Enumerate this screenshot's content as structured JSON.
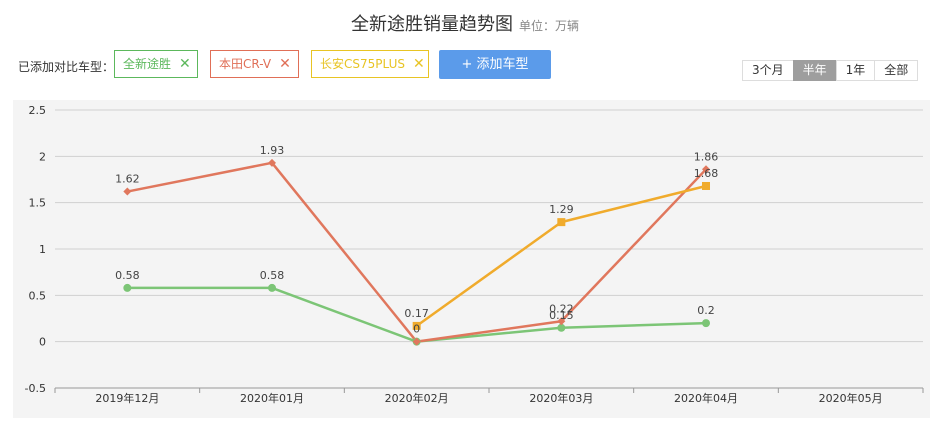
{
  "header": {
    "title": "全新途胜销量趋势图",
    "unit": "单位：万辆"
  },
  "compare": {
    "label": "已添加对比车型：",
    "tags": [
      {
        "name": "全新途胜",
        "close": "✕",
        "color": "#5cb85c"
      },
      {
        "name": "本田CR-V",
        "close": "✕",
        "color": "#e06f57"
      },
      {
        "name": "长安CS75PLUS",
        "close": "✕",
        "color": "#e8c424"
      }
    ],
    "add_button": "+ 添加车型"
  },
  "range_buttons": [
    {
      "label": "3个月",
      "active": false
    },
    {
      "label": "半年",
      "active": true
    },
    {
      "label": "1年",
      "active": false
    },
    {
      "label": "全部",
      "active": false
    }
  ],
  "chart_data": {
    "type": "line",
    "title": "全新途胜销量趋势图",
    "ylabel": "万辆",
    "categories": [
      "2019年12月",
      "2020年01月",
      "2020年02月",
      "2020年03月",
      "2020年04月",
      "2020年05月"
    ],
    "ylim": [
      -0.5,
      2.5
    ],
    "yticks": [
      -0.5,
      0,
      0.5,
      1,
      1.5,
      2,
      2.5
    ],
    "ytick_labels": [
      "-0.5",
      "0",
      "0.5",
      "1",
      "1.5",
      "2",
      "2.5"
    ],
    "grid": true,
    "series": [
      {
        "name": "全新途胜",
        "color": "#7cc576",
        "marker": "circle",
        "values": [
          0.58,
          0.58,
          0,
          0.15,
          0.2,
          null
        ],
        "labels": [
          "0.58",
          "0.58",
          "0",
          "0.15",
          "0.2",
          null
        ]
      },
      {
        "name": "本田CR-V",
        "color": "#e0775d",
        "marker": "diamond",
        "values": [
          1.62,
          1.93,
          0,
          0.22,
          1.86,
          null
        ],
        "labels": [
          "1.62",
          "1.93",
          "",
          "0.22",
          "1.86",
          null
        ]
      },
      {
        "name": "长安CS75PLUS",
        "color": "#f0ab2c",
        "marker": "square",
        "values": [
          null,
          null,
          0.17,
          1.29,
          1.68,
          null
        ],
        "labels": [
          null,
          null,
          "0.17",
          "1.29",
          "1.68",
          null
        ]
      }
    ]
  }
}
